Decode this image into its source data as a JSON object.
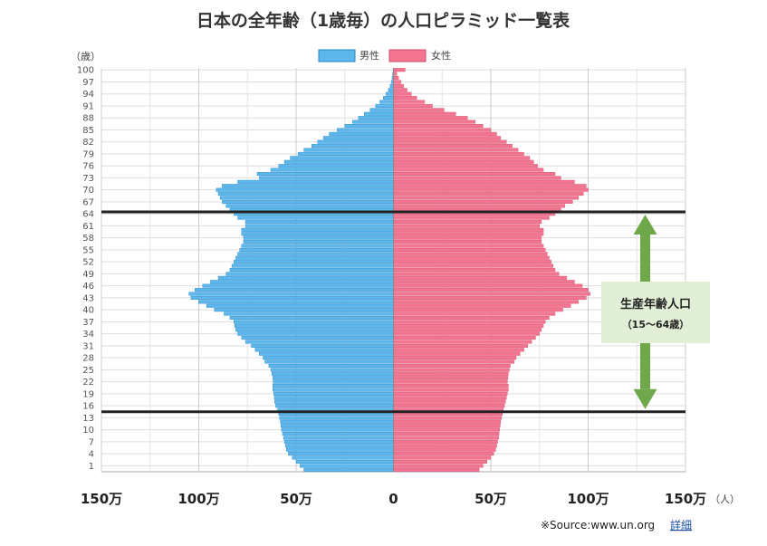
{
  "chart_data": {
    "type": "bar",
    "orientation": "horizontal-pyramid",
    "title": "日本の全年齢（1歳毎）の人口ピラミッド一覧表",
    "y_unit": "（歳）",
    "x_unit": "（人）",
    "x_tick_labels": [
      "150万",
      "100万",
      "50万",
      "0",
      "50万",
      "100万",
      "150万"
    ],
    "y_tick_labels": [
      "100",
      "97",
      "94",
      "91",
      "88",
      "85",
      "82",
      "79",
      "76",
      "73",
      "70",
      "67",
      "64",
      "61",
      "58",
      "55",
      "52",
      "49",
      "46",
      "43",
      "40",
      "37",
      "34",
      "31",
      "28",
      "25",
      "22",
      "19",
      "16",
      "13",
      "10",
      "7",
      "4",
      "1"
    ],
    "xlim": [
      -1500000,
      1500000
    ],
    "age_range": [
      0,
      100
    ],
    "legend": [
      "男性",
      "女性"
    ],
    "colors": {
      "male": "#5bb7ec",
      "male_edge": "#2a86c6",
      "female": "#f47590",
      "female_edge": "#d24a6c",
      "line": "#222222",
      "arrow": "#6fa84a",
      "annot_bg": "#e1efd6"
    },
    "series": [
      {
        "name": "男性",
        "values": [
          460000,
          480000,
          500000,
          520000,
          540000,
          550000,
          555000,
          560000,
          565000,
          570000,
          575000,
          578000,
          580000,
          585000,
          590000,
          595000,
          605000,
          610000,
          612000,
          615000,
          620000,
          620000,
          618000,
          620000,
          625000,
          630000,
          640000,
          660000,
          670000,
          690000,
          710000,
          730000,
          760000,
          780000,
          800000,
          810000,
          815000,
          820000,
          840000,
          870000,
          920000,
          960000,
          1000000,
          1040000,
          1050000,
          1020000,
          980000,
          940000,
          900000,
          860000,
          840000,
          830000,
          820000,
          810000,
          800000,
          790000,
          780000,
          770000,
          770000,
          780000,
          780000,
          760000,
          760000,
          800000,
          820000,
          840000,
          860000,
          880000,
          890000,
          900000,
          910000,
          880000,
          800000,
          690000,
          700000,
          630000,
          590000,
          560000,
          530000,
          490000,
          460000,
          420000,
          390000,
          360000,
          330000,
          290000,
          250000,
          210000,
          180000,
          150000,
          120000,
          92000,
          70000,
          52000,
          38000,
          26000,
          17000,
          11000,
          7000,
          4000,
          2000
        ],
        "values_note_order": "age 0 to 100"
      },
      {
        "name": "女性",
        "values": [
          440000,
          460000,
          480000,
          500000,
          515000,
          525000,
          530000,
          535000,
          540000,
          542000,
          545000,
          548000,
          550000,
          555000,
          560000,
          565000,
          570000,
          575000,
          580000,
          585000,
          590000,
          590000,
          585000,
          588000,
          590000,
          595000,
          600000,
          620000,
          630000,
          650000,
          670000,
          690000,
          710000,
          730000,
          750000,
          760000,
          770000,
          780000,
          800000,
          830000,
          870000,
          910000,
          950000,
          990000,
          1010000,
          1000000,
          970000,
          930000,
          890000,
          850000,
          830000,
          820000,
          810000,
          800000,
          790000,
          780000,
          770000,
          760000,
          760000,
          770000,
          770000,
          750000,
          760000,
          800000,
          830000,
          860000,
          880000,
          920000,
          950000,
          975000,
          1000000,
          990000,
          930000,
          860000,
          830000,
          770000,
          740000,
          720000,
          700000,
          670000,
          640000,
          610000,
          580000,
          550000,
          530000,
          500000,
          460000,
          420000,
          380000,
          320000,
          260000,
          200000,
          160000,
          120000,
          92000,
          70000,
          52000,
          38000,
          26000,
          17000,
          60000
        ]
      }
    ]
  },
  "annotation": {
    "title": "生産年齢人口",
    "subtitle": "（15～64歳）",
    "range": [
      15,
      64
    ]
  },
  "footer": {
    "source_text": "※Source:www.un.org",
    "link_label": "詳細"
  }
}
